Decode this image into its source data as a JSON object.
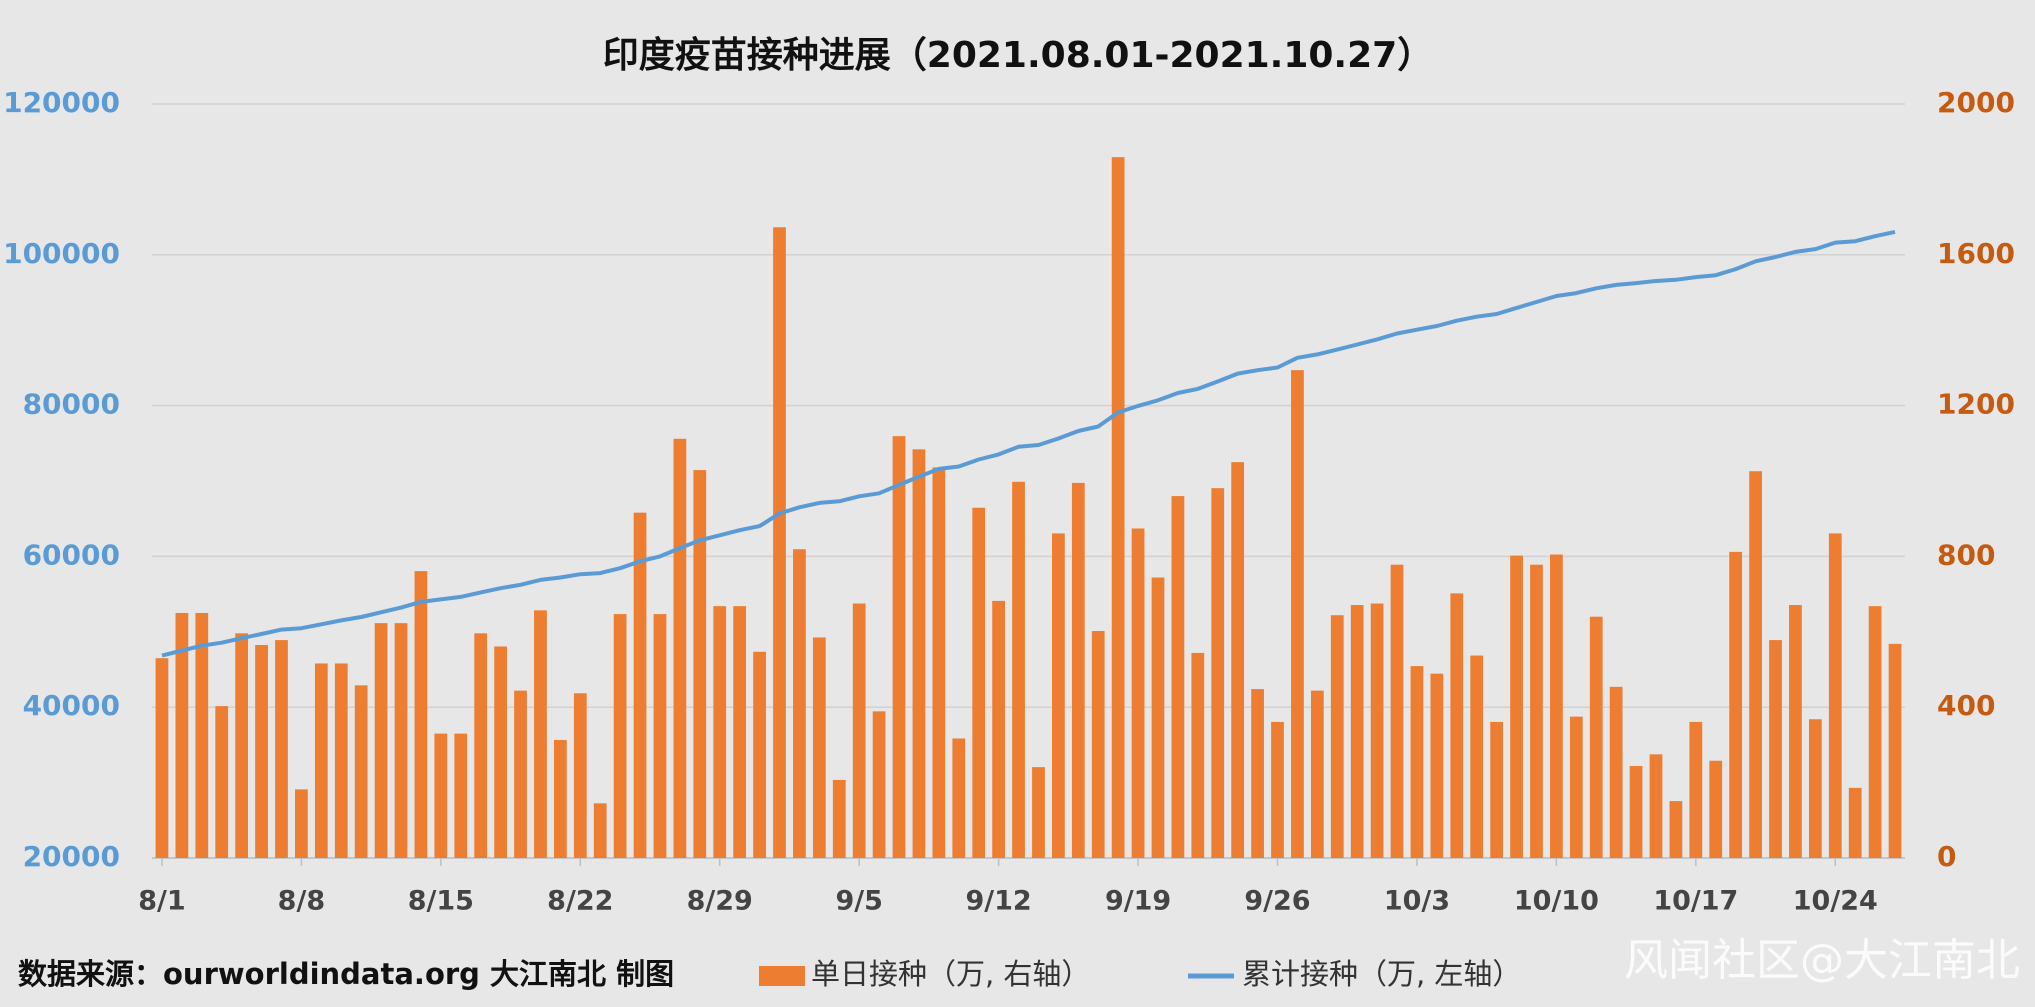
{
  "chart_data": {
    "type": "bar",
    "title": "印度疫苗接种进展（2021.08.01-2021.10.27）",
    "source": "数据来源：ourworldindata.org 大江南北 制图",
    "watermark": "风闻社区@大江南北",
    "categories": [
      "8/1",
      null,
      null,
      null,
      null,
      null,
      null,
      "8/8",
      null,
      null,
      null,
      null,
      null,
      null,
      "8/15",
      null,
      null,
      null,
      null,
      null,
      null,
      "8/22",
      null,
      null,
      null,
      null,
      null,
      null,
      "8/29",
      null,
      null,
      null,
      null,
      null,
      null,
      "9/5",
      null,
      null,
      null,
      null,
      null,
      null,
      "9/12",
      null,
      null,
      null,
      null,
      null,
      null,
      "9/19",
      null,
      null,
      null,
      null,
      null,
      null,
      "9/26",
      null,
      null,
      null,
      null,
      null,
      null,
      "10/3",
      null,
      null,
      null,
      null,
      null,
      null,
      "10/10",
      null,
      null,
      null,
      null,
      null,
      null,
      "10/17",
      null,
      null,
      null,
      null,
      null,
      null,
      "10/24",
      null,
      null,
      null
    ],
    "series": [
      {
        "name": "单日接种（万, 右轴）",
        "type": "bar",
        "axis": "y2",
        "color": "#ED7D31",
        "values": [
          530,
          650,
          650,
          403,
          596,
          565,
          578,
          182,
          516,
          516,
          458,
          623,
          623,
          761,
          330,
          330,
          596,
          561,
          444,
          657,
          313,
          437,
          145,
          647,
          916,
          647,
          1112,
          1029,
          668,
          668,
          547,
          1673,
          819,
          585,
          207,
          675,
          389,
          1119,
          1084,
          1036,
          317,
          929,
          682,
          998,
          241,
          861,
          995,
          602,
          1859,
          874,
          744,
          960,
          544,
          981,
          1050,
          448,
          361,
          1294,
          444,
          644,
          671,
          675,
          778,
          509,
          489,
          702,
          537,
          361,
          802,
          778,
          805,
          375,
          640,
          454,
          244,
          275,
          151,
          361,
          258,
          812,
          1026,
          578,
          671,
          368,
          861,
          186,
          668,
          568
        ]
      },
      {
        "name": "累计接种（万, 左轴）",
        "type": "line",
        "axis": "y",
        "color": "#5B9BD5",
        "values": [
          46850,
          47500,
          48150,
          48553,
          49149,
          49714,
          50292,
          50474,
          50990,
          51506,
          51964,
          52587,
          53210,
          53971,
          54301,
          54631,
          55227,
          55788,
          56232,
          56889,
          57202,
          57639,
          57784,
          58431,
          59347,
          59994,
          61106,
          62135,
          62803,
          63471,
          64018,
          65691,
          66510,
          67095,
          67302,
          67977,
          68366,
          69485,
          70569,
          71605,
          71922,
          72851,
          73533,
          74531,
          74772,
          75633,
          76628,
          77230,
          79089,
          79963,
          80707,
          81667,
          82211,
          83192,
          84242,
          84690,
          85051,
          86345,
          86789,
          87433,
          88104,
          88779,
          89557,
          90066,
          90555,
          91257,
          91794,
          92155,
          92957,
          93735,
          94540,
          94915,
          95555,
          96009,
          96253,
          96528,
          96679,
          97040,
          97298,
          98110,
          99136,
          99714,
          100385,
          100753,
          101614,
          101800,
          102468,
          103036
        ]
      }
    ],
    "ylim": [
      20000,
      120000
    ],
    "yticks": [
      20000,
      40000,
      60000,
      80000,
      100000,
      120000
    ],
    "y2lim": [
      0,
      2000
    ],
    "y2ticks": [
      0,
      400,
      800,
      1200,
      1600,
      2000
    ],
    "grid": true
  }
}
